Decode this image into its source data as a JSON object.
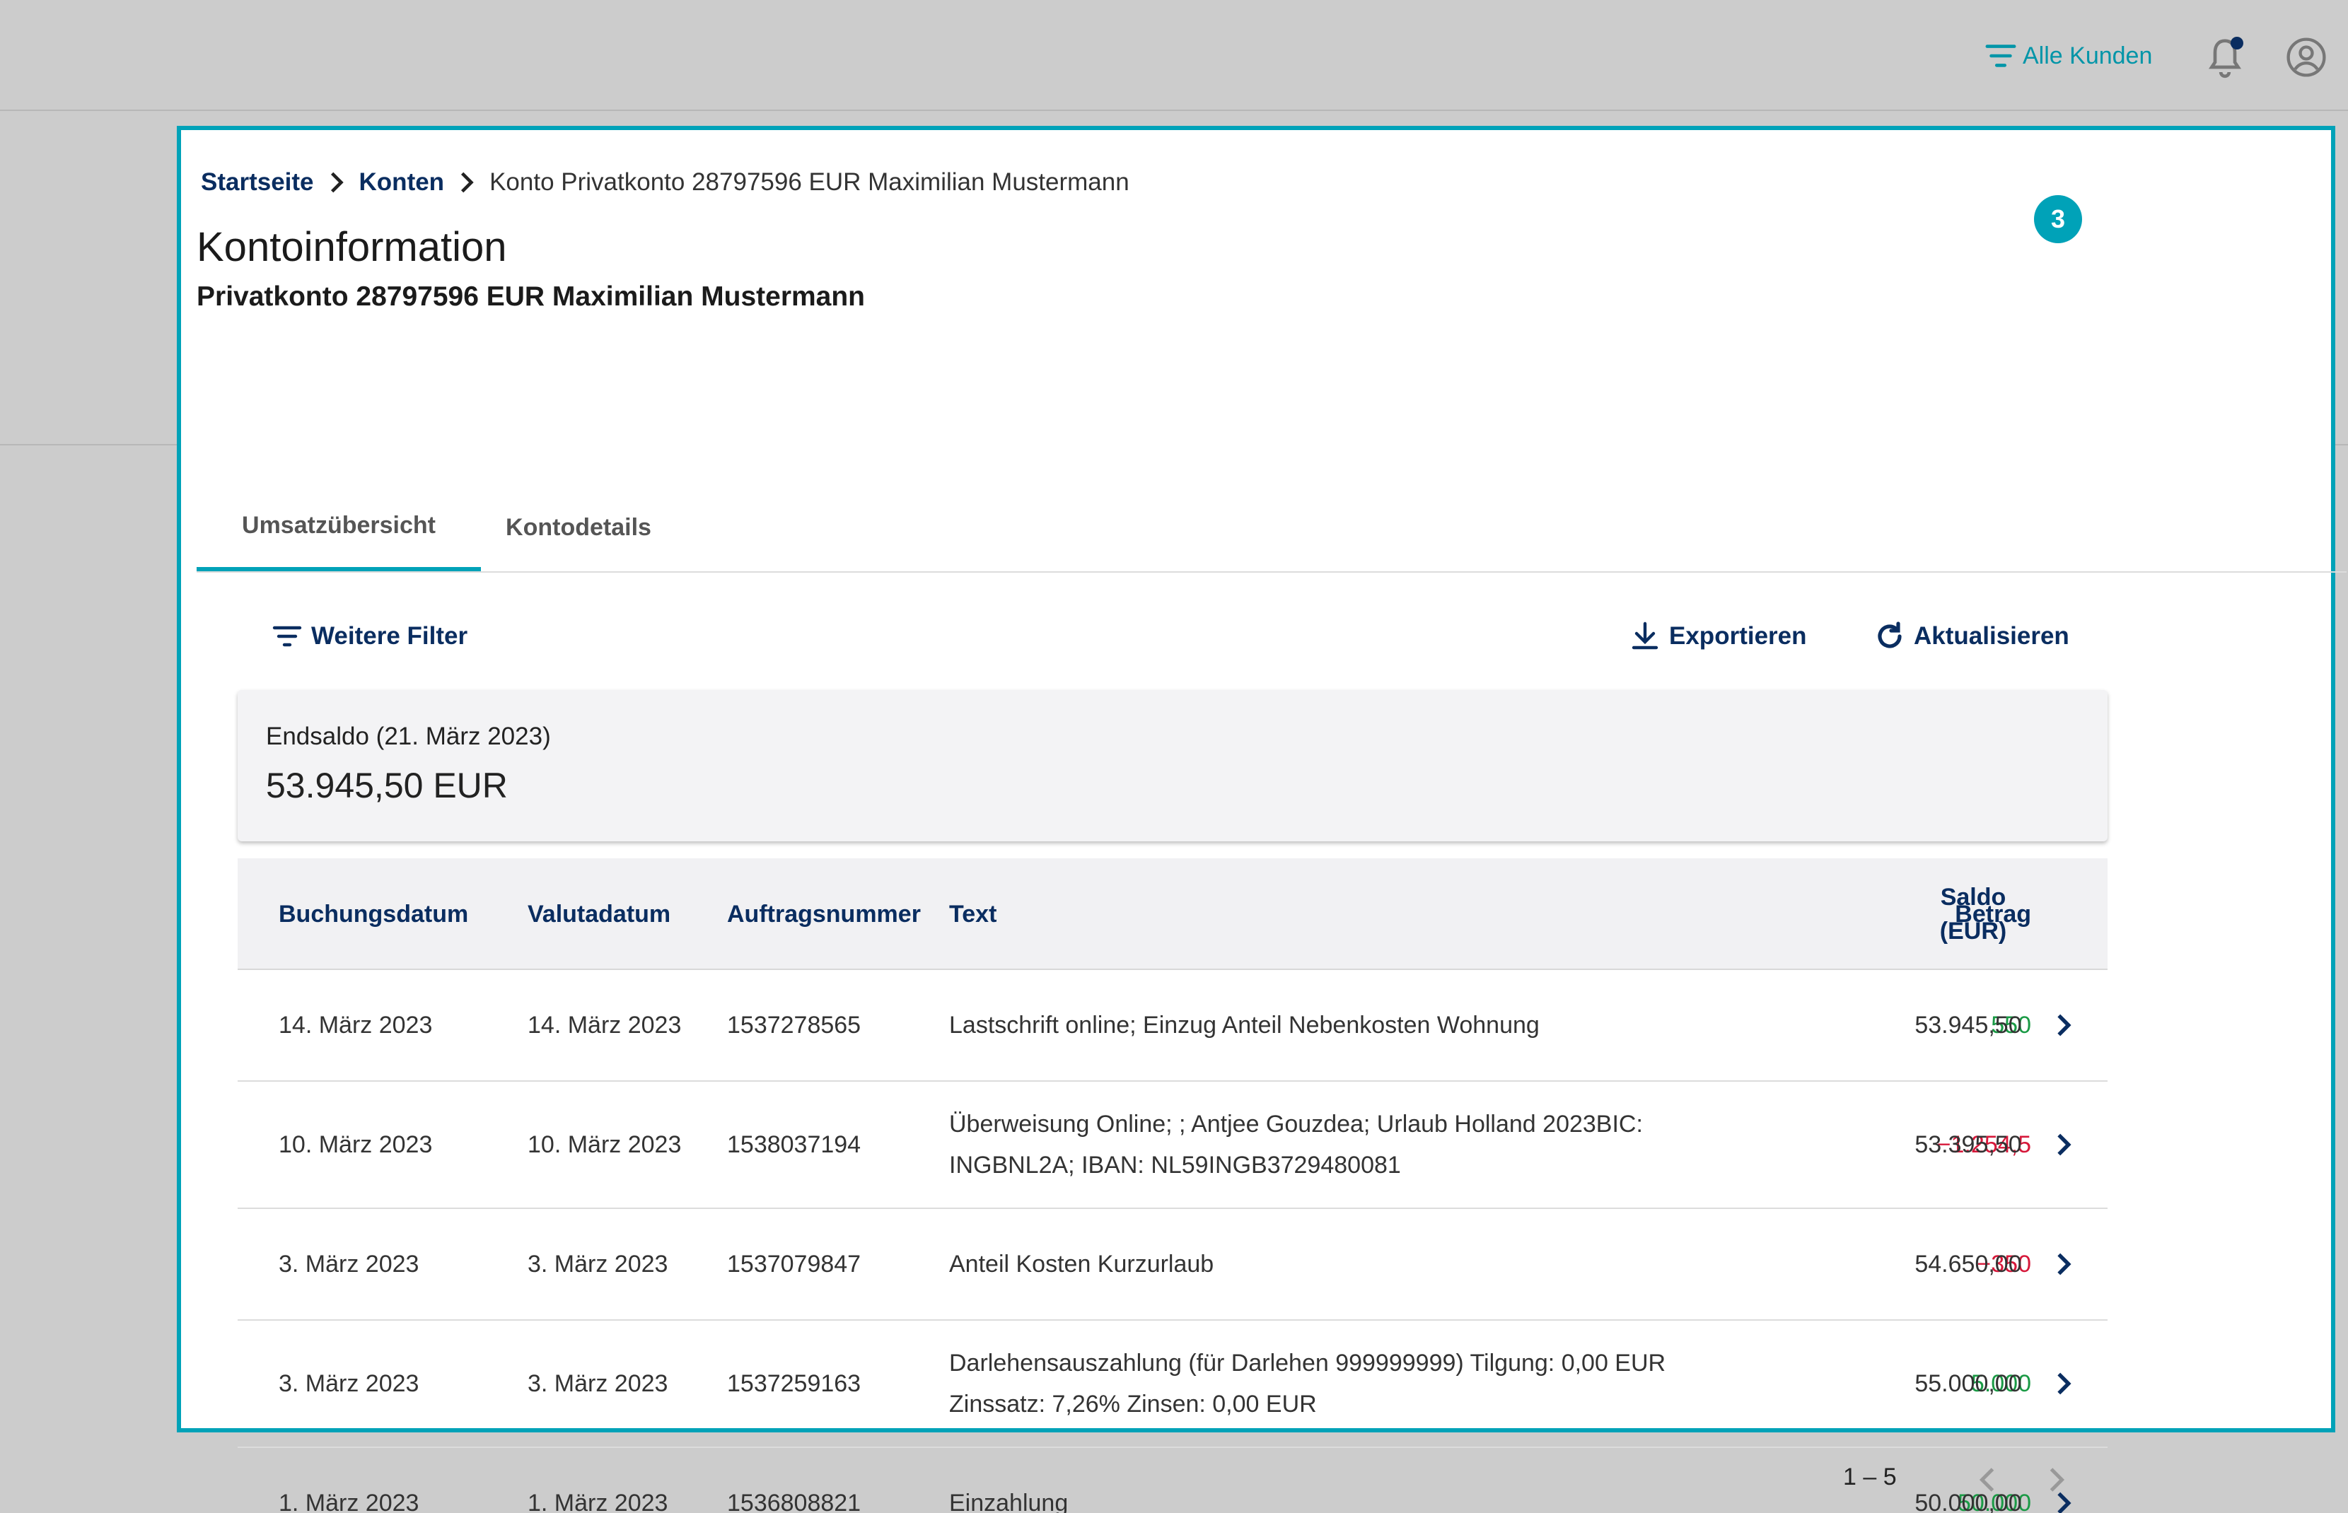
{
  "header": {
    "customer_filter_label": "Alle Kunden",
    "icons": {
      "filter": "filter-lines-icon",
      "notifications": "bell-icon",
      "user": "user-circle-icon"
    }
  },
  "breadcrumb": {
    "items": [
      "Startseite",
      "Konten"
    ],
    "current": "Konto Privatkonto 28797596 EUR Maximilian Mustermann"
  },
  "step_badge": "3",
  "page": {
    "title": "Kontoinformation",
    "subtitle": "Privatkonto 28797596 EUR Maximilian Mustermann"
  },
  "tabs": [
    {
      "label": "Umsatzübersicht",
      "active": true
    },
    {
      "label": "Kontodetails",
      "active": false
    }
  ],
  "toolbar": {
    "filter_label": "Weitere Filter",
    "export_label": "Exportieren",
    "refresh_label": "Aktualisieren"
  },
  "balance": {
    "label": "Endsaldo (21. März 2023)",
    "value": "53.945,50 EUR"
  },
  "table": {
    "columns": [
      "Buchungsdatum",
      "Valutadatum",
      "Auftragsnummer",
      "Text",
      "Betrag",
      "Saldo (EUR)"
    ],
    "rows": [
      {
        "booking": "14. März 2023",
        "value": "14. März 2023",
        "order": "1537278565",
        "text": "Lastschrift online; Einzug Anteil Nebenkosten Wohnung",
        "amount": "550",
        "sign": "pos",
        "balance": "53.945,50"
      },
      {
        "booking": "10. März 2023",
        "value": "10. März 2023",
        "order": "1538037194",
        "text": "Überweisung Online; ; Antjee Gouzdea; Urlaub Holland 2023BIC: INGBNL2A; IBAN: NL59INGB3729480081",
        "amount": "−1.254,5",
        "sign": "neg",
        "balance": "53.395,50"
      },
      {
        "booking": "3. März 2023",
        "value": "3. März 2023",
        "order": "1537079847",
        "text": "Anteil Kosten Kurzurlaub",
        "amount": "−350",
        "sign": "neg",
        "balance": "54.650,00"
      },
      {
        "booking": "3. März 2023",
        "value": "3. März 2023",
        "order": "1537259163",
        "text": "Darlehensauszahlung (für Darlehen 999999999) Tilgung: 0,00 EUR Zinssatz: 7,26% Zinsen: 0,00 EUR",
        "amount": "5.000",
        "sign": "pos",
        "balance": "55.000,00"
      },
      {
        "booking": "1. März 2023",
        "value": "1. März 2023",
        "order": "1536808821",
        "text": "Einzahlung",
        "amount": "50.000",
        "sign": "pos",
        "balance": "50.000,00"
      }
    ]
  },
  "pagination": {
    "range": "1 – 5"
  },
  "colors": {
    "accent": "#00a2b8",
    "navy": "#0a2d60",
    "positive": "#1a9a45",
    "negative": "#d6183a"
  }
}
